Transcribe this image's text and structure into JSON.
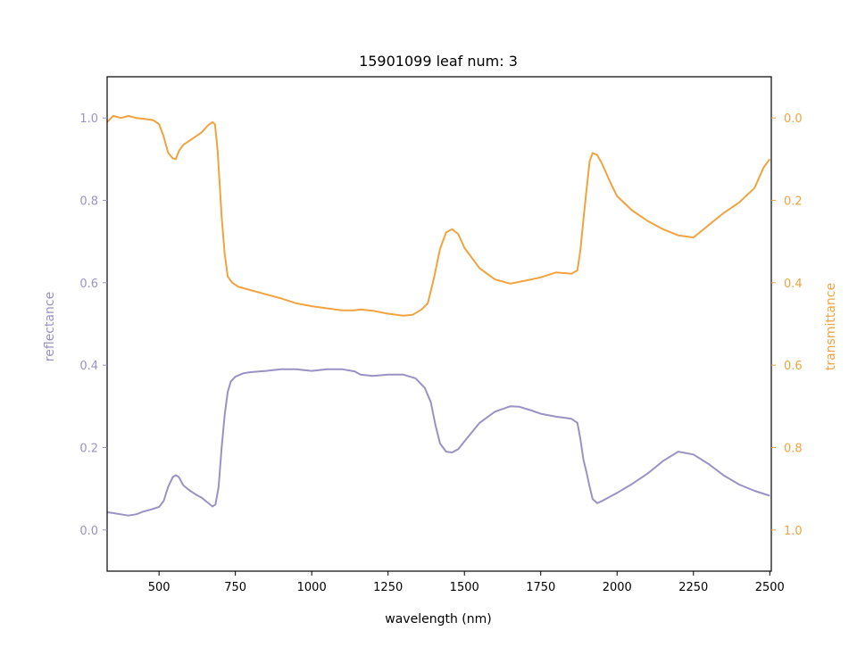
{
  "chart_data": {
    "type": "line",
    "title": "15901099 leaf num: 3",
    "xlabel": "wavelength (nm)",
    "ylabel_left": "reflectance",
    "ylabel_right": "transmittance",
    "xlim": [
      330,
      2505
    ],
    "ylim_left": [
      -0.1,
      1.1
    ],
    "ylim_right": [
      1.1,
      -0.1
    ],
    "right_axis_inverted": true,
    "grid": false,
    "x_ticks": [
      500,
      750,
      1000,
      1250,
      1500,
      1750,
      2000,
      2250,
      2500
    ],
    "y_left_ticks": [
      0.0,
      0.2,
      0.4,
      0.6,
      0.8,
      1.0
    ],
    "y_right_ticks": [
      0.0,
      0.2,
      0.4,
      0.6,
      0.8,
      1.0
    ],
    "colors": {
      "reflectance": "#9a92c4",
      "transmittance": "#f0a33e",
      "axes": "#000000"
    },
    "series": [
      {
        "name": "reflectance",
        "axis": "left",
        "points": [
          [
            330,
            0.043
          ],
          [
            350,
            0.041
          ],
          [
            375,
            0.038
          ],
          [
            400,
            0.035
          ],
          [
            425,
            0.038
          ],
          [
            450,
            0.045
          ],
          [
            475,
            0.05
          ],
          [
            500,
            0.056
          ],
          [
            515,
            0.07
          ],
          [
            530,
            0.105
          ],
          [
            545,
            0.128
          ],
          [
            555,
            0.133
          ],
          [
            565,
            0.128
          ],
          [
            580,
            0.108
          ],
          [
            600,
            0.096
          ],
          [
            620,
            0.086
          ],
          [
            640,
            0.078
          ],
          [
            660,
            0.066
          ],
          [
            675,
            0.057
          ],
          [
            685,
            0.062
          ],
          [
            695,
            0.105
          ],
          [
            705,
            0.2
          ],
          [
            715,
            0.28
          ],
          [
            725,
            0.335
          ],
          [
            735,
            0.36
          ],
          [
            750,
            0.372
          ],
          [
            775,
            0.38
          ],
          [
            800,
            0.383
          ],
          [
            850,
            0.386
          ],
          [
            900,
            0.39
          ],
          [
            950,
            0.39
          ],
          [
            975,
            0.388
          ],
          [
            1000,
            0.386
          ],
          [
            1050,
            0.39
          ],
          [
            1100,
            0.39
          ],
          [
            1140,
            0.385
          ],
          [
            1160,
            0.377
          ],
          [
            1200,
            0.374
          ],
          [
            1250,
            0.377
          ],
          [
            1300,
            0.377
          ],
          [
            1340,
            0.368
          ],
          [
            1370,
            0.345
          ],
          [
            1390,
            0.31
          ],
          [
            1405,
            0.255
          ],
          [
            1420,
            0.21
          ],
          [
            1440,
            0.19
          ],
          [
            1460,
            0.188
          ],
          [
            1480,
            0.196
          ],
          [
            1500,
            0.215
          ],
          [
            1550,
            0.26
          ],
          [
            1600,
            0.287
          ],
          [
            1650,
            0.3
          ],
          [
            1680,
            0.299
          ],
          [
            1720,
            0.29
          ],
          [
            1750,
            0.282
          ],
          [
            1800,
            0.275
          ],
          [
            1850,
            0.27
          ],
          [
            1870,
            0.26
          ],
          [
            1880,
            0.22
          ],
          [
            1890,
            0.17
          ],
          [
            1900,
            0.14
          ],
          [
            1910,
            0.105
          ],
          [
            1920,
            0.075
          ],
          [
            1935,
            0.065
          ],
          [
            1950,
            0.07
          ],
          [
            1980,
            0.082
          ],
          [
            2000,
            0.09
          ],
          [
            2050,
            0.112
          ],
          [
            2100,
            0.137
          ],
          [
            2150,
            0.167
          ],
          [
            2200,
            0.19
          ],
          [
            2250,
            0.183
          ],
          [
            2300,
            0.16
          ],
          [
            2350,
            0.132
          ],
          [
            2400,
            0.11
          ],
          [
            2450,
            0.095
          ],
          [
            2500,
            0.083
          ]
        ]
      },
      {
        "name": "transmittance",
        "axis": "right",
        "points": [
          [
            330,
            0.01
          ],
          [
            350,
            -0.005
          ],
          [
            375,
            0.0
          ],
          [
            400,
            -0.005
          ],
          [
            425,
            0.0
          ],
          [
            450,
            0.002
          ],
          [
            480,
            0.005
          ],
          [
            500,
            0.015
          ],
          [
            515,
            0.045
          ],
          [
            530,
            0.085
          ],
          [
            545,
            0.098
          ],
          [
            555,
            0.1
          ],
          [
            565,
            0.08
          ],
          [
            580,
            0.065
          ],
          [
            600,
            0.055
          ],
          [
            620,
            0.045
          ],
          [
            640,
            0.035
          ],
          [
            660,
            0.018
          ],
          [
            675,
            0.01
          ],
          [
            683,
            0.015
          ],
          [
            692,
            0.08
          ],
          [
            705,
            0.24
          ],
          [
            715,
            0.33
          ],
          [
            725,
            0.385
          ],
          [
            740,
            0.4
          ],
          [
            760,
            0.41
          ],
          [
            800,
            0.418
          ],
          [
            850,
            0.428
          ],
          [
            900,
            0.438
          ],
          [
            950,
            0.45
          ],
          [
            1000,
            0.457
          ],
          [
            1050,
            0.462
          ],
          [
            1100,
            0.467
          ],
          [
            1140,
            0.467
          ],
          [
            1160,
            0.465
          ],
          [
            1200,
            0.468
          ],
          [
            1250,
            0.475
          ],
          [
            1300,
            0.48
          ],
          [
            1330,
            0.478
          ],
          [
            1360,
            0.465
          ],
          [
            1380,
            0.45
          ],
          [
            1400,
            0.39
          ],
          [
            1420,
            0.318
          ],
          [
            1440,
            0.278
          ],
          [
            1460,
            0.27
          ],
          [
            1480,
            0.282
          ],
          [
            1500,
            0.315
          ],
          [
            1550,
            0.365
          ],
          [
            1600,
            0.392
          ],
          [
            1650,
            0.402
          ],
          [
            1700,
            0.395
          ],
          [
            1750,
            0.387
          ],
          [
            1800,
            0.375
          ],
          [
            1850,
            0.378
          ],
          [
            1870,
            0.37
          ],
          [
            1880,
            0.32
          ],
          [
            1890,
            0.245
          ],
          [
            1900,
            0.175
          ],
          [
            1910,
            0.105
          ],
          [
            1920,
            0.085
          ],
          [
            1935,
            0.09
          ],
          [
            1950,
            0.11
          ],
          [
            1980,
            0.16
          ],
          [
            2000,
            0.19
          ],
          [
            2050,
            0.225
          ],
          [
            2100,
            0.25
          ],
          [
            2150,
            0.27
          ],
          [
            2200,
            0.285
          ],
          [
            2250,
            0.29
          ],
          [
            2300,
            0.26
          ],
          [
            2350,
            0.23
          ],
          [
            2400,
            0.205
          ],
          [
            2450,
            0.17
          ],
          [
            2480,
            0.12
          ],
          [
            2500,
            0.1
          ]
        ]
      }
    ]
  }
}
